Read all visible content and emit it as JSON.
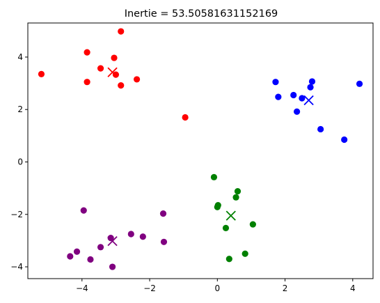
{
  "chart_data": {
    "type": "scatter",
    "title": "Inertie = 53.50581631152169",
    "xlabel": "",
    "ylabel": "",
    "xlim": [
      -5.6,
      4.6
    ],
    "ylim": [
      -4.45,
      5.3
    ],
    "grid": false,
    "xticks": [
      -4,
      -2,
      0,
      2,
      4
    ],
    "yticks": [
      -4,
      -2,
      0,
      2,
      4
    ],
    "xtick_labels": [
      "−4",
      "−2",
      "0",
      "2",
      "4"
    ],
    "ytick_labels": [
      "−4",
      "−2",
      "0",
      "2",
      "4"
    ],
    "series": [
      {
        "color": "#ff0000",
        "points": [
          [
            -5.2,
            3.35
          ],
          [
            -3.85,
            4.18
          ],
          [
            -3.85,
            3.05
          ],
          [
            -3.45,
            3.57
          ],
          [
            -3.05,
            3.97
          ],
          [
            -3.0,
            3.33
          ],
          [
            -2.85,
            2.92
          ],
          [
            -2.85,
            4.98
          ],
          [
            -2.38,
            3.15
          ],
          [
            -0.95,
            1.7
          ]
        ],
        "centroid": [
          -3.1,
          3.42
        ]
      },
      {
        "color": "#0000ff",
        "points": [
          [
            1.72,
            3.05
          ],
          [
            1.8,
            2.48
          ],
          [
            2.25,
            2.55
          ],
          [
            2.35,
            1.92
          ],
          [
            2.5,
            2.43
          ],
          [
            2.75,
            2.85
          ],
          [
            2.8,
            3.07
          ],
          [
            3.05,
            1.25
          ],
          [
            3.75,
            0.85
          ],
          [
            4.2,
            2.98
          ]
        ],
        "centroid": [
          2.7,
          2.35
        ]
      },
      {
        "color": "#008000",
        "points": [
          [
            -0.1,
            -0.58
          ],
          [
            0.0,
            -1.72
          ],
          [
            0.02,
            -1.65
          ],
          [
            0.25,
            -2.52
          ],
          [
            0.35,
            -3.7
          ],
          [
            0.55,
            -1.35
          ],
          [
            0.6,
            -1.12
          ],
          [
            0.82,
            -3.5
          ],
          [
            1.05,
            -2.38
          ]
        ],
        "centroid": [
          0.4,
          -2.05
        ]
      },
      {
        "color": "#800080",
        "points": [
          [
            -4.35,
            -3.6
          ],
          [
            -4.15,
            -3.42
          ],
          [
            -3.95,
            -1.85
          ],
          [
            -3.75,
            -3.72
          ],
          [
            -3.45,
            -3.25
          ],
          [
            -3.15,
            -2.9
          ],
          [
            -3.1,
            -4.0
          ],
          [
            -2.55,
            -2.75
          ],
          [
            -2.2,
            -2.85
          ],
          [
            -1.6,
            -1.97
          ],
          [
            -1.58,
            -3.05
          ]
        ],
        "centroid": [
          -3.1,
          -3.02
        ]
      }
    ]
  }
}
